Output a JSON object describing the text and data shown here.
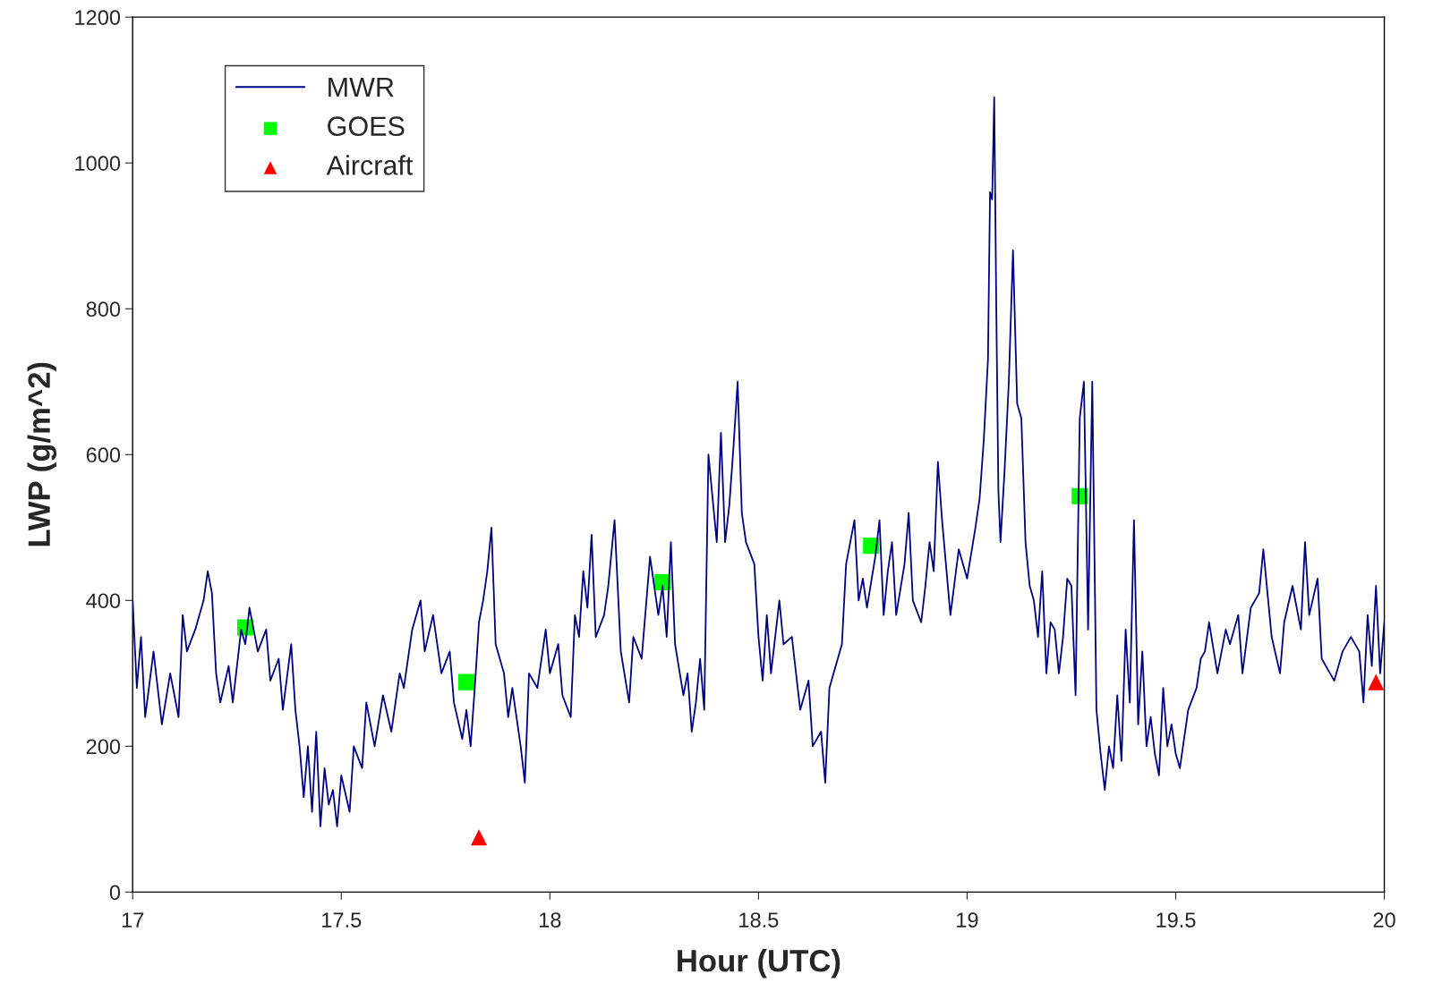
{
  "chart_data": {
    "type": "line",
    "xlabel": "Hour (UTC)",
    "ylabel": "LWP (g/m^2)",
    "xlim": [
      17,
      20
    ],
    "xticks": [
      17,
      17.5,
      18,
      18.5,
      19,
      19.5,
      20
    ],
    "ylim": [
      0,
      1200
    ],
    "yticks": [
      0,
      200,
      400,
      600,
      800,
      1000,
      1200
    ],
    "grid": false,
    "legend": "top left",
    "series": [
      {
        "name": "MWR",
        "type": "line",
        "color": "#000080",
        "marker": "none",
        "line_style": "solid",
        "x": [
          17.0,
          17.01,
          17.02,
          17.03,
          17.05,
          17.07,
          17.09,
          17.11,
          17.12,
          17.13,
          17.15,
          17.17,
          17.18,
          17.19,
          17.2,
          17.21,
          17.23,
          17.24,
          17.26,
          17.27,
          17.28,
          17.3,
          17.32,
          17.33,
          17.35,
          17.36,
          17.38,
          17.39,
          17.4,
          17.41,
          17.42,
          17.43,
          17.44,
          17.45,
          17.46,
          17.47,
          17.48,
          17.49,
          17.5,
          17.52,
          17.53,
          17.55,
          17.56,
          17.58,
          17.6,
          17.62,
          17.64,
          17.65,
          17.67,
          17.69,
          17.7,
          17.72,
          17.74,
          17.76,
          17.77,
          17.79,
          17.8,
          17.81,
          17.82,
          17.83,
          17.84,
          17.85,
          17.86,
          17.87,
          17.89,
          17.9,
          17.91,
          17.93,
          17.94,
          17.95,
          17.97,
          17.99,
          18.0,
          18.02,
          18.03,
          18.05,
          18.06,
          18.07,
          18.08,
          18.09,
          18.1,
          18.11,
          18.13,
          18.14,
          18.15,
          18.155,
          18.17,
          18.19,
          18.2,
          18.22,
          18.24,
          18.26,
          18.27,
          18.28,
          18.29,
          18.3,
          18.32,
          18.33,
          18.34,
          18.35,
          18.36,
          18.37,
          18.38,
          18.39,
          18.4,
          18.41,
          18.42,
          18.43,
          18.44,
          18.45,
          18.46,
          18.47,
          18.49,
          18.5,
          18.51,
          18.52,
          18.53,
          18.55,
          18.56,
          18.58,
          18.6,
          18.62,
          18.63,
          18.65,
          18.66,
          18.67,
          18.68,
          18.7,
          18.71,
          18.72,
          18.73,
          18.74,
          18.75,
          18.76,
          18.78,
          18.79,
          18.8,
          18.81,
          18.82,
          18.83,
          18.85,
          18.86,
          18.87,
          18.89,
          18.9,
          18.91,
          18.92,
          18.93,
          18.94,
          18.96,
          18.98,
          19.0,
          19.02,
          19.03,
          19.04,
          19.05,
          19.055,
          19.06,
          19.065,
          19.07,
          19.075,
          19.08,
          19.09,
          19.1,
          19.11,
          19.12,
          19.13,
          19.14,
          19.15,
          19.16,
          19.17,
          19.18,
          19.19,
          19.2,
          19.21,
          19.22,
          19.23,
          19.24,
          19.25,
          19.26,
          19.27,
          19.28,
          19.29,
          19.3,
          19.31,
          19.32,
          19.33,
          19.34,
          19.35,
          19.36,
          19.37,
          19.38,
          19.39,
          19.4,
          19.41,
          19.42,
          19.43,
          19.44,
          19.45,
          19.46,
          19.47,
          19.48,
          19.49,
          19.5,
          19.51,
          19.52,
          19.53,
          19.55,
          19.56,
          19.57,
          19.58,
          19.6,
          19.62,
          19.63,
          19.65,
          19.66,
          19.68,
          19.7,
          19.71,
          19.73,
          19.75,
          19.76,
          19.78,
          19.8,
          19.81,
          19.82,
          19.84,
          19.85,
          19.87,
          19.88,
          19.9,
          19.92,
          19.94,
          19.95,
          19.96,
          19.97,
          19.98,
          19.99,
          20.0
        ],
        "values": [
          400,
          280,
          350,
          240,
          330,
          230,
          300,
          240,
          380,
          330,
          360,
          400,
          440,
          410,
          300,
          260,
          310,
          260,
          360,
          340,
          390,
          330,
          360,
          290,
          320,
          250,
          340,
          250,
          200,
          130,
          200,
          110,
          220,
          90,
          170,
          120,
          140,
          90,
          160,
          110,
          200,
          170,
          260,
          200,
          270,
          220,
          300,
          280,
          360,
          400,
          330,
          380,
          300,
          330,
          260,
          210,
          250,
          200,
          280,
          370,
          400,
          440,
          500,
          340,
          300,
          240,
          280,
          200,
          150,
          300,
          280,
          360,
          300,
          340,
          270,
          240,
          380,
          350,
          440,
          390,
          490,
          350,
          380,
          420,
          480,
          510,
          330,
          260,
          350,
          320,
          460,
          380,
          420,
          350,
          480,
          340,
          270,
          300,
          220,
          260,
          320,
          250,
          600,
          540,
          480,
          630,
          480,
          530,
          610,
          700,
          520,
          480,
          450,
          350,
          290,
          380,
          300,
          400,
          340,
          350,
          250,
          290,
          200,
          220,
          150,
          280,
          300,
          340,
          450,
          480,
          510,
          400,
          430,
          390,
          460,
          510,
          380,
          440,
          480,
          380,
          450,
          520,
          400,
          370,
          420,
          480,
          440,
          590,
          510,
          380,
          470,
          430,
          500,
          540,
          620,
          730,
          960,
          950,
          1090,
          800,
          550,
          480,
          580,
          700,
          880,
          670,
          650,
          480,
          420,
          400,
          350,
          440,
          300,
          370,
          360,
          300,
          350,
          430,
          420,
          270,
          650,
          700,
          360,
          700,
          250,
          190,
          140,
          200,
          170,
          270,
          180,
          360,
          260,
          510,
          230,
          330,
          200,
          240,
          190,
          160,
          280,
          200,
          230,
          190,
          170,
          210,
          250,
          280,
          320,
          330,
          370,
          300,
          360,
          340,
          380,
          300,
          390,
          410,
          470,
          350,
          300,
          370,
          420,
          360,
          480,
          380,
          430,
          320,
          300,
          290,
          330,
          350,
          330,
          260,
          380,
          310,
          420,
          300,
          370
        ]
      },
      {
        "name": "GOES",
        "type": "scatter",
        "color": "#00ff00",
        "marker": "square",
        "x": [
          17.27,
          17.8,
          18.27,
          18.77,
          19.27
        ],
        "values": [
          363,
          288,
          425,
          475,
          543
        ]
      },
      {
        "name": "Aircraft",
        "type": "scatter",
        "color": "#ff0000",
        "marker": "triangle",
        "x": [
          17.83,
          19.98
        ],
        "values": [
          75,
          288
        ]
      }
    ]
  }
}
